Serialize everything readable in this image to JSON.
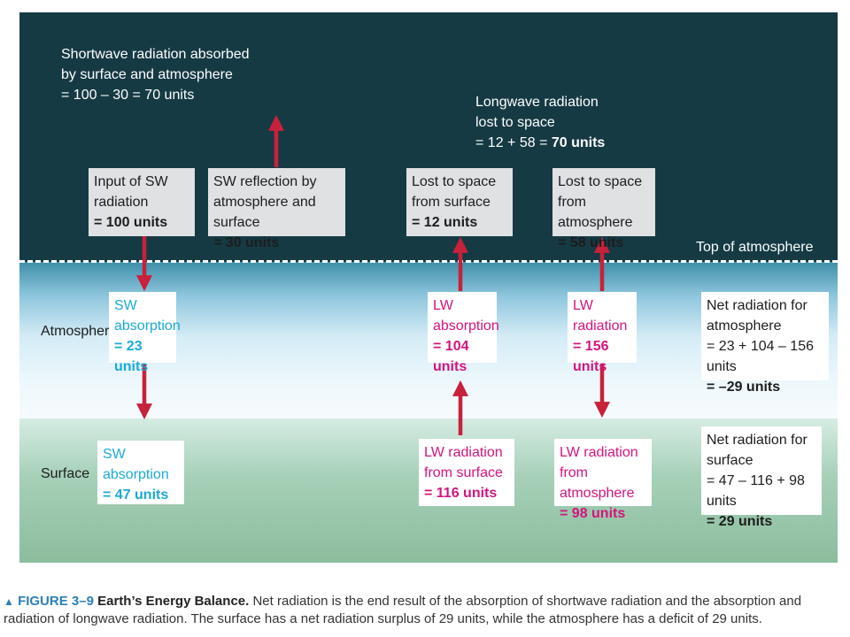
{
  "diagram": {
    "zones": {
      "atmosphere": "Atmosphere",
      "surface": "Surface",
      "top_of_atmosphere": "Top of atmosphere"
    },
    "shortwave_total": {
      "line1": "Shortwave radiation absorbed",
      "line2": "by surface and atmosphere",
      "line3": "= 100 – 30 = 70 units"
    },
    "longwave_total": {
      "line1": "Longwave radiation",
      "line2": "lost to space",
      "eq": "= 12 + 58 = ",
      "value": "70 units"
    },
    "boxes": {
      "sw_input": {
        "line1": "Input of SW",
        "line2": "radiation",
        "value": "= 100 units"
      },
      "sw_reflection": {
        "line1": "SW reflection by",
        "line2": "atmosphere and surface",
        "value": "= 30 units"
      },
      "lost_surface": {
        "line1": "Lost to space",
        "line2": "from surface",
        "value": "= 12 units"
      },
      "lost_atmosphere": {
        "line1": "Lost to space",
        "line2": "from atmosphere",
        "value": "= 58 units"
      },
      "sw_absorption_atm": {
        "line1": "SW",
        "line2": "absorption",
        "value": "= 23 units"
      },
      "lw_absorption": {
        "line1": "LW",
        "line2": "absorption",
        "value": "= 104 units"
      },
      "lw_radiation_atm": {
        "line1": "LW",
        "line2": "radiation",
        "value": "= 156 units"
      },
      "net_atmosphere": {
        "line1": "Net radiation for",
        "line2": "atmosphere",
        "line3": "= 23 + 104 – 156 units",
        "value": "= –29 units"
      },
      "sw_absorption_surf": {
        "line1": "SW absorption",
        "value": "= 47 units"
      },
      "lw_from_surface": {
        "line1": "LW radiation",
        "line2": "from surface",
        "value": "= 116 units"
      },
      "lw_from_atmosphere": {
        "line1": "LW radiation",
        "line2": "from atmosphere",
        "value": "= 98 units"
      },
      "net_surface": {
        "line1": "Net radiation for",
        "line2": "surface",
        "line3": "= 47 – 116 + 98 units",
        "value": "= 29 units"
      }
    },
    "colors": {
      "space": "#153a44",
      "arrow": "#c8213b",
      "shortwave_text": "#1aaad8",
      "longwave_text": "#d3147e"
    }
  },
  "caption": {
    "marker": "▲",
    "figure_number": "FIGURE 3–9",
    "title": "Earth’s Energy Balance.",
    "text": "Net radiation is the end result of the absorption of shortwave radiation and the absorption and radiation of longwave radiation. The surface has a net radiation surplus of 29 units, while the atmosphere has a deficit of 29 units."
  }
}
